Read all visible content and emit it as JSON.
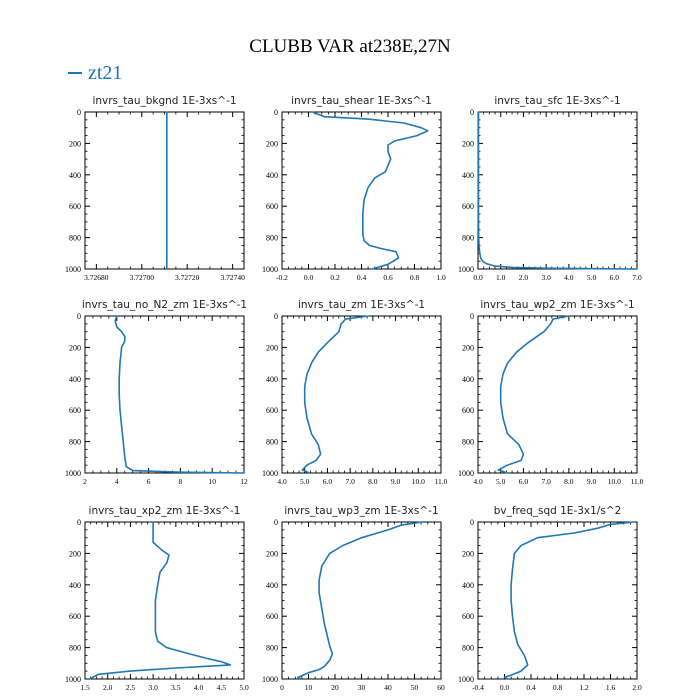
{
  "figure": {
    "title": "CLUBB VAR at238E,27N",
    "legend": {
      "label": "zt21",
      "color": "#1f77b4"
    }
  },
  "chart_data": [
    {
      "type": "line",
      "title": "invrs_tau_bkgnd   1E-3xs^-1",
      "xlim": [
        3.72675,
        3.72745
      ],
      "xticks": [
        3.7268,
        3.727,
        3.7272,
        3.7274
      ],
      "xtick_labels": [
        "3.72680",
        "3.72700",
        "3.72720",
        "3.72740"
      ],
      "ylim": [
        1000,
        0
      ],
      "yticks": [
        0,
        200,
        400,
        600,
        800,
        1000
      ],
      "series": [
        {
          "color": "#1f77b4",
          "x": [
            3.72711,
            3.72711
          ],
          "y": [
            0,
            1000
          ]
        }
      ]
    },
    {
      "type": "line",
      "title": "invrs_tau_shear   1E-3xs^-1",
      "xlim": [
        -0.2,
        1.0
      ],
      "xticks": [
        -0.2,
        0,
        0.2,
        0.4,
        0.6,
        0.8,
        1.0
      ],
      "xtick_labels": [
        "-0.2",
        "0.0",
        "0.2",
        "0.4",
        "0.6",
        "0.8",
        "1.0"
      ],
      "ylim": [
        1000,
        0
      ],
      "yticks": [
        0,
        200,
        400,
        600,
        800,
        1000
      ],
      "series": [
        {
          "color": "#1f77b4",
          "x": [
            0.03,
            0.12,
            0.45,
            0.72,
            0.85,
            0.9,
            0.82,
            0.65,
            0.6,
            0.6,
            0.62,
            0.6,
            0.58,
            0.5,
            0.45,
            0.42,
            0.41,
            0.41,
            0.41,
            0.42,
            0.46,
            0.55,
            0.66,
            0.68,
            0.6,
            0.48
          ],
          "y": [
            0,
            30,
            45,
            70,
            100,
            120,
            150,
            185,
            210,
            250,
            300,
            340,
            380,
            420,
            480,
            560,
            650,
            730,
            780,
            820,
            850,
            870,
            890,
            930,
            970,
            1000
          ]
        }
      ]
    },
    {
      "type": "line",
      "title": "invrs_tau_sfc   1E-3xs^-1",
      "xlim": [
        0.0,
        7.0
      ],
      "xticks": [
        0,
        1,
        2,
        3,
        4,
        5,
        6,
        7
      ],
      "xtick_labels": [
        "0.0",
        "1.0",
        "2.0",
        "3.0",
        "4.0",
        "5.0",
        "6.0",
        "7.0"
      ],
      "ylim": [
        1000,
        0
      ],
      "yticks": [
        0,
        200,
        400,
        600,
        800,
        1000
      ],
      "series": [
        {
          "color": "#1f77b4",
          "x": [
            0.02,
            0.02,
            0.03,
            0.05,
            0.08,
            0.12,
            0.2,
            0.35,
            0.7,
            1.5,
            3.0,
            5.0,
            7.0
          ],
          "y": [
            0,
            700,
            800,
            860,
            900,
            930,
            950,
            965,
            980,
            990,
            995,
            998,
            1000
          ]
        }
      ]
    },
    {
      "type": "line",
      "title": "invrs_tau_no_N2_zm   1E-3xs^-1",
      "xlim": [
        2,
        12
      ],
      "xticks": [
        2,
        4,
        6,
        8,
        10,
        12
      ],
      "xtick_labels": [
        "2",
        "4",
        "6",
        "8",
        "10",
        "12"
      ],
      "ylim": [
        1000,
        0
      ],
      "yticks": [
        0,
        200,
        400,
        600,
        800,
        1000
      ],
      "series": [
        {
          "color": "#1f77b4",
          "x": [
            4.0,
            3.9,
            4.0,
            4.3,
            4.5,
            4.5,
            4.3,
            4.2,
            4.15,
            4.15,
            4.2,
            4.3,
            4.4,
            4.5,
            4.6,
            5.0,
            8.0,
            12.0
          ],
          "y": [
            0,
            30,
            70,
            100,
            130,
            160,
            200,
            300,
            400,
            500,
            600,
            700,
            800,
            900,
            960,
            985,
            995,
            1000
          ]
        }
      ]
    },
    {
      "type": "line",
      "title": "invrs_tau_zm   1E-3xs^-1",
      "xlim": [
        4.0,
        11.0
      ],
      "xticks": [
        4,
        5,
        6,
        7,
        8,
        9,
        10,
        11
      ],
      "xtick_labels": [
        "4.0",
        "5.0",
        "6.0",
        "7.0",
        "8.0",
        "9.0",
        "10.0",
        "11.0"
      ],
      "ylim": [
        1000,
        0
      ],
      "yticks": [
        0,
        200,
        400,
        600,
        800,
        1000
      ],
      "series": [
        {
          "color": "#1f77b4",
          "x": [
            7.8,
            6.8,
            6.6,
            6.5,
            6.0,
            5.6,
            5.3,
            5.1,
            5.0,
            5.0,
            5.1,
            5.3,
            5.6,
            5.7,
            5.5,
            5.1,
            4.9,
            5.2
          ],
          "y": [
            0,
            20,
            50,
            100,
            170,
            230,
            300,
            370,
            450,
            550,
            650,
            750,
            820,
            880,
            920,
            950,
            980,
            1000
          ]
        }
      ]
    },
    {
      "type": "line",
      "title": "invrs_tau_wp2_zm   1E-3xs^-1",
      "xlim": [
        4.0,
        11.0
      ],
      "xticks": [
        4,
        5,
        6,
        7,
        8,
        9,
        10,
        11
      ],
      "xtick_labels": [
        "4.0",
        "5.0",
        "6.0",
        "7.0",
        "8.0",
        "9.0",
        "10.0",
        "11.0"
      ],
      "ylim": [
        1000,
        0
      ],
      "yticks": [
        0,
        200,
        400,
        600,
        800,
        1000
      ],
      "series": [
        {
          "color": "#1f77b4",
          "x": [
            8.0,
            7.3,
            7.2,
            6.9,
            6.2,
            5.7,
            5.3,
            5.1,
            5.0,
            5.0,
            5.1,
            5.3,
            5.8,
            6.0,
            5.9,
            5.3,
            4.9,
            5.3
          ],
          "y": [
            0,
            20,
            50,
            100,
            170,
            230,
            300,
            370,
            450,
            550,
            650,
            750,
            820,
            880,
            920,
            950,
            980,
            1000
          ]
        }
      ]
    },
    {
      "type": "line",
      "title": "invrs_tau_xp2_zm   1E-3xs^-1",
      "xlim": [
        1.5,
        5.0
      ],
      "xticks": [
        1.5,
        2.0,
        2.5,
        3.0,
        3.5,
        4.0,
        4.5,
        5.0
      ],
      "xtick_labels": [
        "1.5",
        "2.0",
        "2.5",
        "3.0",
        "3.5",
        "4.0",
        "4.5",
        "5.0"
      ],
      "ylim": [
        1000,
        0
      ],
      "yticks": [
        0,
        200,
        400,
        600,
        800,
        1000
      ],
      "series": [
        {
          "color": "#1f77b4",
          "x": [
            3.0,
            3.0,
            3.0,
            3.2,
            3.35,
            3.3,
            3.15,
            3.1,
            3.05,
            3.05,
            3.05,
            3.1,
            3.3,
            3.8,
            4.2,
            4.5,
            4.7,
            3.5,
            2.5,
            1.8,
            1.6
          ],
          "y": [
            0,
            40,
            130,
            180,
            210,
            260,
            320,
            400,
            500,
            600,
            700,
            760,
            800,
            840,
            870,
            890,
            910,
            930,
            950,
            970,
            1000
          ]
        }
      ]
    },
    {
      "type": "line",
      "title": "invrs_tau_wp3_zm   1E-3xs^-1",
      "xlim": [
        0,
        60
      ],
      "xticks": [
        0,
        10,
        20,
        30,
        40,
        50,
        60
      ],
      "xtick_labels": [
        "0",
        "10",
        "20",
        "30",
        "40",
        "50",
        "60"
      ],
      "ylim": [
        1000,
        0
      ],
      "yticks": [
        0,
        200,
        400,
        600,
        800,
        1000
      ],
      "series": [
        {
          "color": "#1f77b4",
          "x": [
            53,
            45,
            40,
            30,
            23,
            18,
            15,
            14,
            14,
            15,
            16,
            17,
            18,
            19,
            18,
            16,
            14,
            10,
            8,
            6,
            7
          ],
          "y": [
            0,
            20,
            50,
            100,
            150,
            200,
            280,
            370,
            450,
            550,
            650,
            720,
            790,
            840,
            880,
            920,
            940,
            960,
            975,
            990,
            1000
          ]
        }
      ]
    },
    {
      "type": "line",
      "title": "bv_freq_sqd   1E-3x1/s^2",
      "xlim": [
        -0.4,
        2.0
      ],
      "xticks": [
        -0.4,
        0.0,
        0.4,
        0.8,
        1.2,
        1.6,
        2.0
      ],
      "xtick_labels": [
        "-0.4",
        "0.0",
        "0.4",
        "0.8",
        "1.2",
        "1.6",
        "2.0"
      ],
      "ylim": [
        1000,
        0
      ],
      "yticks": [
        0,
        200,
        400,
        600,
        800,
        1000
      ],
      "series": [
        {
          "color": "#1f77b4",
          "x": [
            1.95,
            1.6,
            1.4,
            1.05,
            0.5,
            0.25,
            0.15,
            0.12,
            0.1,
            0.1,
            0.12,
            0.15,
            0.2,
            0.3,
            0.35,
            0.25,
            0.1,
            0.0,
            0.05
          ],
          "y": [
            0,
            15,
            40,
            70,
            100,
            150,
            200,
            300,
            400,
            500,
            600,
            700,
            780,
            850,
            910,
            950,
            975,
            990,
            1000
          ]
        }
      ]
    }
  ]
}
